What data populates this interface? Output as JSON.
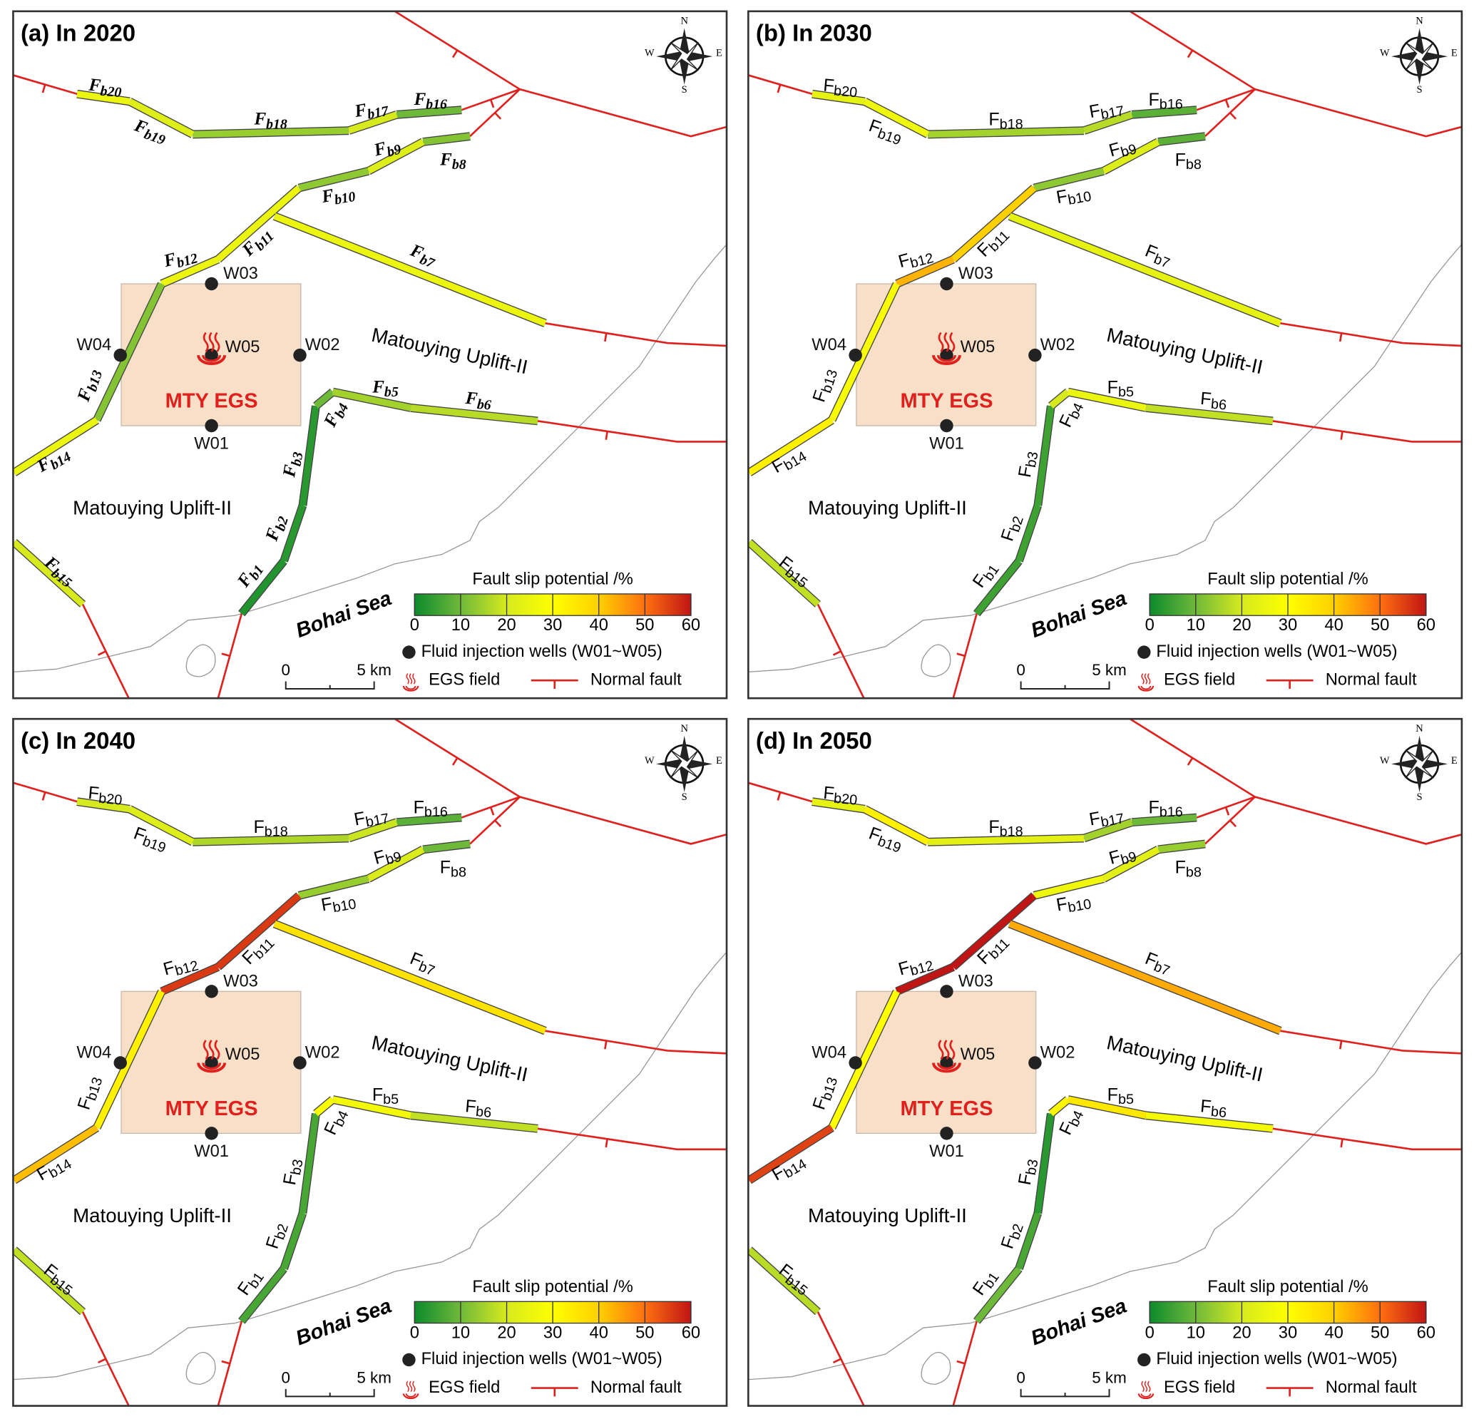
{
  "fault_labels": [
    "Fb1",
    "Fb2",
    "Fb3",
    "Fb4",
    "Fb5",
    "Fb6",
    "Fb7",
    "Fb8",
    "Fb9",
    "Fb10",
    "Fb11",
    "Fb12",
    "Fb13",
    "Fb14",
    "Fb15",
    "Fb16",
    "Fb17",
    "Fb18",
    "Fb19",
    "Fb20"
  ],
  "panels": [
    {
      "title": "(a) In 2020",
      "italic_labels": true,
      "slip": [
        2,
        3,
        3,
        10,
        15,
        17,
        25,
        12,
        22,
        13,
        25,
        25,
        12,
        25,
        20,
        10,
        20,
        14,
        22,
        25
      ]
    },
    {
      "title": "(b) In 2030",
      "italic_labels": false,
      "slip": [
        5,
        5,
        5,
        20,
        25,
        18,
        24,
        8,
        22,
        13,
        40,
        43,
        28,
        33,
        18,
        8,
        17,
        15,
        26,
        24
      ]
    },
    {
      "title": "(c) In 2040",
      "italic_labels": false,
      "slip": [
        6,
        6,
        6,
        28,
        27,
        18,
        36,
        10,
        21,
        14,
        56,
        56,
        33,
        42,
        18,
        8,
        19,
        16,
        22,
        20
      ]
    },
    {
      "title": "(d) In 2050",
      "italic_labels": false,
      "slip": [
        10,
        6,
        3,
        32,
        35,
        27,
        44,
        14,
        23,
        26,
        60,
        60,
        30,
        55,
        17,
        10,
        15,
        23,
        33,
        24
      ]
    }
  ],
  "map": {
    "wells": [
      "W01",
      "W02",
      "W03",
      "W04",
      "W05"
    ],
    "field": "MTY EGS",
    "uplift": "Matouying Uplift-II",
    "sea": "Bohai Sea",
    "colorbar_title": "Fault slip potential /%",
    "colorbar_range": [
      0,
      60
    ],
    "colorbar_ticks": [
      0,
      10,
      20,
      30,
      40,
      50,
      60
    ],
    "colormap": [
      "#0d8a2c",
      "#6fb93a",
      "#d6ea1e",
      "#ffff00",
      "#ffd000",
      "#ff7010",
      "#c01515"
    ],
    "legend_wells": "Fluid injection wells (W01~W05)",
    "legend_field": "EGS field",
    "legend_fault": "Normal fault",
    "scale_zero": "0",
    "scale_length": "5 km",
    "compass": [
      "N",
      "E",
      "S",
      "W"
    ]
  }
}
